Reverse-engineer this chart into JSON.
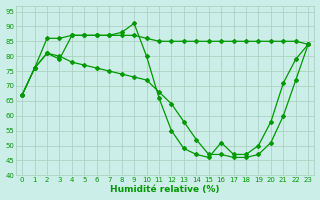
{
  "xlabel": "Humidité relative (%)",
  "xlim": [
    -0.5,
    23.5
  ],
  "ylim": [
    40,
    97
  ],
  "yticks": [
    40,
    45,
    50,
    55,
    60,
    65,
    70,
    75,
    80,
    85,
    90,
    95
  ],
  "xticks": [
    0,
    1,
    2,
    3,
    4,
    5,
    6,
    7,
    8,
    9,
    10,
    11,
    12,
    13,
    14,
    15,
    16,
    17,
    18,
    19,
    20,
    21,
    22,
    23
  ],
  "bg_color": "#cceee8",
  "grid_color": "#aaccbb",
  "line_color": "#009900",
  "lines": [
    {
      "x": [
        0,
        1,
        2,
        3,
        4,
        5,
        6,
        7,
        8,
        9,
        10,
        11,
        12,
        13,
        14,
        15,
        16,
        17,
        18,
        19,
        20,
        21,
        22,
        23
      ],
      "y": [
        67,
        76,
        81,
        79,
        87,
        87,
        87,
        87,
        88,
        91,
        80,
        66,
        55,
        49,
        47,
        46,
        51,
        47,
        47,
        50,
        58,
        71,
        79,
        84
      ]
    },
    {
      "x": [
        0,
        1,
        2,
        3,
        4,
        5,
        6,
        7,
        8,
        9,
        10,
        11,
        12,
        13,
        14,
        15,
        16,
        17,
        18,
        19,
        20,
        21,
        22,
        23
      ],
      "y": [
        67,
        76,
        86,
        86,
        87,
        87,
        87,
        87,
        87,
        87,
        86,
        85,
        85,
        85,
        85,
        85,
        85,
        85,
        85,
        85,
        85,
        85,
        85,
        84
      ]
    },
    {
      "x": [
        0,
        1,
        2,
        3,
        4,
        5,
        6,
        7,
        8,
        9,
        10,
        11,
        12,
        13,
        14,
        15,
        16,
        17,
        18,
        19,
        20,
        21,
        22,
        23
      ],
      "y": [
        67,
        76,
        81,
        80,
        78,
        77,
        76,
        75,
        74,
        73,
        72,
        68,
        64,
        58,
        52,
        47,
        47,
        46,
        46,
        47,
        51,
        60,
        72,
        84
      ]
    }
  ]
}
